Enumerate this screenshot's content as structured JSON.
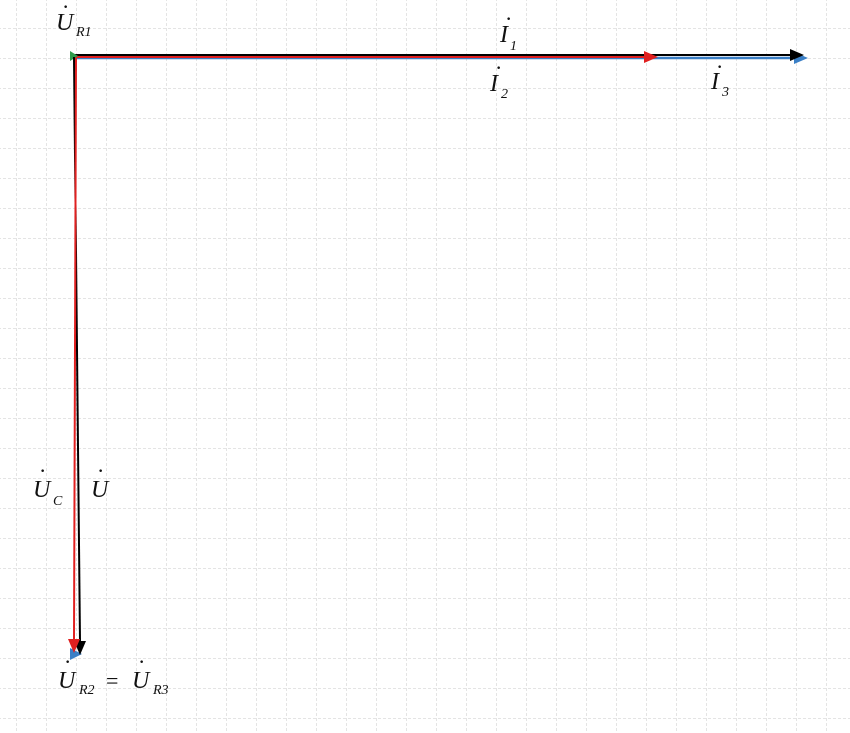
{
  "diagram": {
    "colors": {
      "grid": "#c8c8c8",
      "black": "#000000",
      "red": "#e02020",
      "blue": "#3a7fc6",
      "green": "#2e9a4a"
    },
    "labels": {
      "u_r1": {
        "main": "U",
        "sub": "R1"
      },
      "i1": {
        "main": "I",
        "sub": "1"
      },
      "i2": {
        "main": "I",
        "sub": "2"
      },
      "i3": {
        "main": "I",
        "sub": "3"
      },
      "u_c": {
        "main": "U",
        "sub": "C"
      },
      "u": {
        "main": "U",
        "sub": ""
      },
      "u_r2": {
        "main": "U",
        "sub": "R2"
      },
      "equals": "=",
      "u_r3": {
        "main": "U",
        "sub": "R3"
      }
    }
  }
}
